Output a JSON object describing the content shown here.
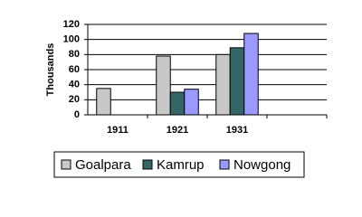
{
  "chart_data": {
    "type": "bar",
    "y_label": "Thousands",
    "categories": [
      "1911",
      "1921",
      "1931",
      null
    ],
    "series": [
      {
        "name": "Goalpara",
        "color": "#c8c8c8",
        "values": [
          35,
          78,
          80,
          null
        ]
      },
      {
        "name": "Kamrup",
        "color": "#336666",
        "values": [
          null,
          30,
          89,
          null
        ]
      },
      {
        "name": "Nowgong",
        "color": "#9999ff",
        "values": [
          null,
          34,
          108,
          null
        ]
      }
    ],
    "ylim": [
      0,
      120
    ],
    "yticks": [
      0,
      20,
      40,
      60,
      80,
      100,
      120
    ],
    "grid": true,
    "legend": "bottom"
  }
}
